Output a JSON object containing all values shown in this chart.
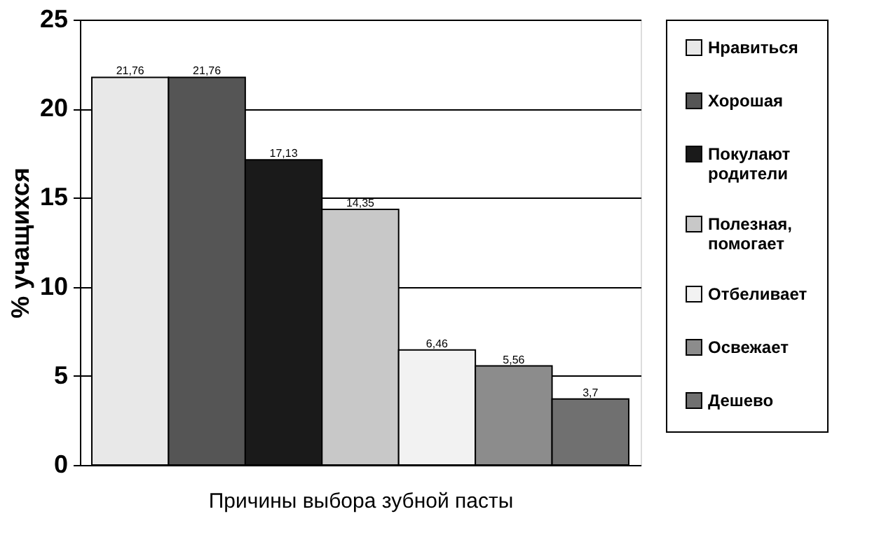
{
  "chart_data": {
    "type": "bar",
    "xlabel": "Причины выбора зубной пасты",
    "ylabel": "% учащихся",
    "categories": [
      null
    ],
    "series": [
      {
        "name": "Нравиться",
        "color": "#e8e8e8",
        "values": [
          21.76
        ],
        "value_labels": [
          "21,76"
        ]
      },
      {
        "name": "Хорошая",
        "color": "#555555",
        "values": [
          21.76
        ],
        "value_labels": [
          "21,76"
        ]
      },
      {
        "name": "Покулают родители",
        "color": "#1a1a1a",
        "values": [
          17.13
        ],
        "value_labels": [
          "17,13"
        ]
      },
      {
        "name": "Полезная, помогает",
        "color": "#c8c8c8",
        "values": [
          14.35
        ],
        "value_labels": [
          "14,35"
        ]
      },
      {
        "name": "Отбеливает",
        "color": "#f2f2f2",
        "values": [
          6.46
        ],
        "value_labels": [
          "6,46"
        ]
      },
      {
        "name": "Освежает",
        "color": "#8c8c8c",
        "values": [
          5.56
        ],
        "value_labels": [
          "5,56"
        ]
      },
      {
        "name": "Дешево",
        "color": "#707070",
        "values": [
          3.7
        ],
        "value_labels": [
          "3,7"
        ]
      }
    ],
    "ylim": [
      0,
      25
    ],
    "yticks": [
      0,
      5,
      10,
      15,
      20,
      25
    ],
    "grid": "y",
    "legend": "right"
  }
}
